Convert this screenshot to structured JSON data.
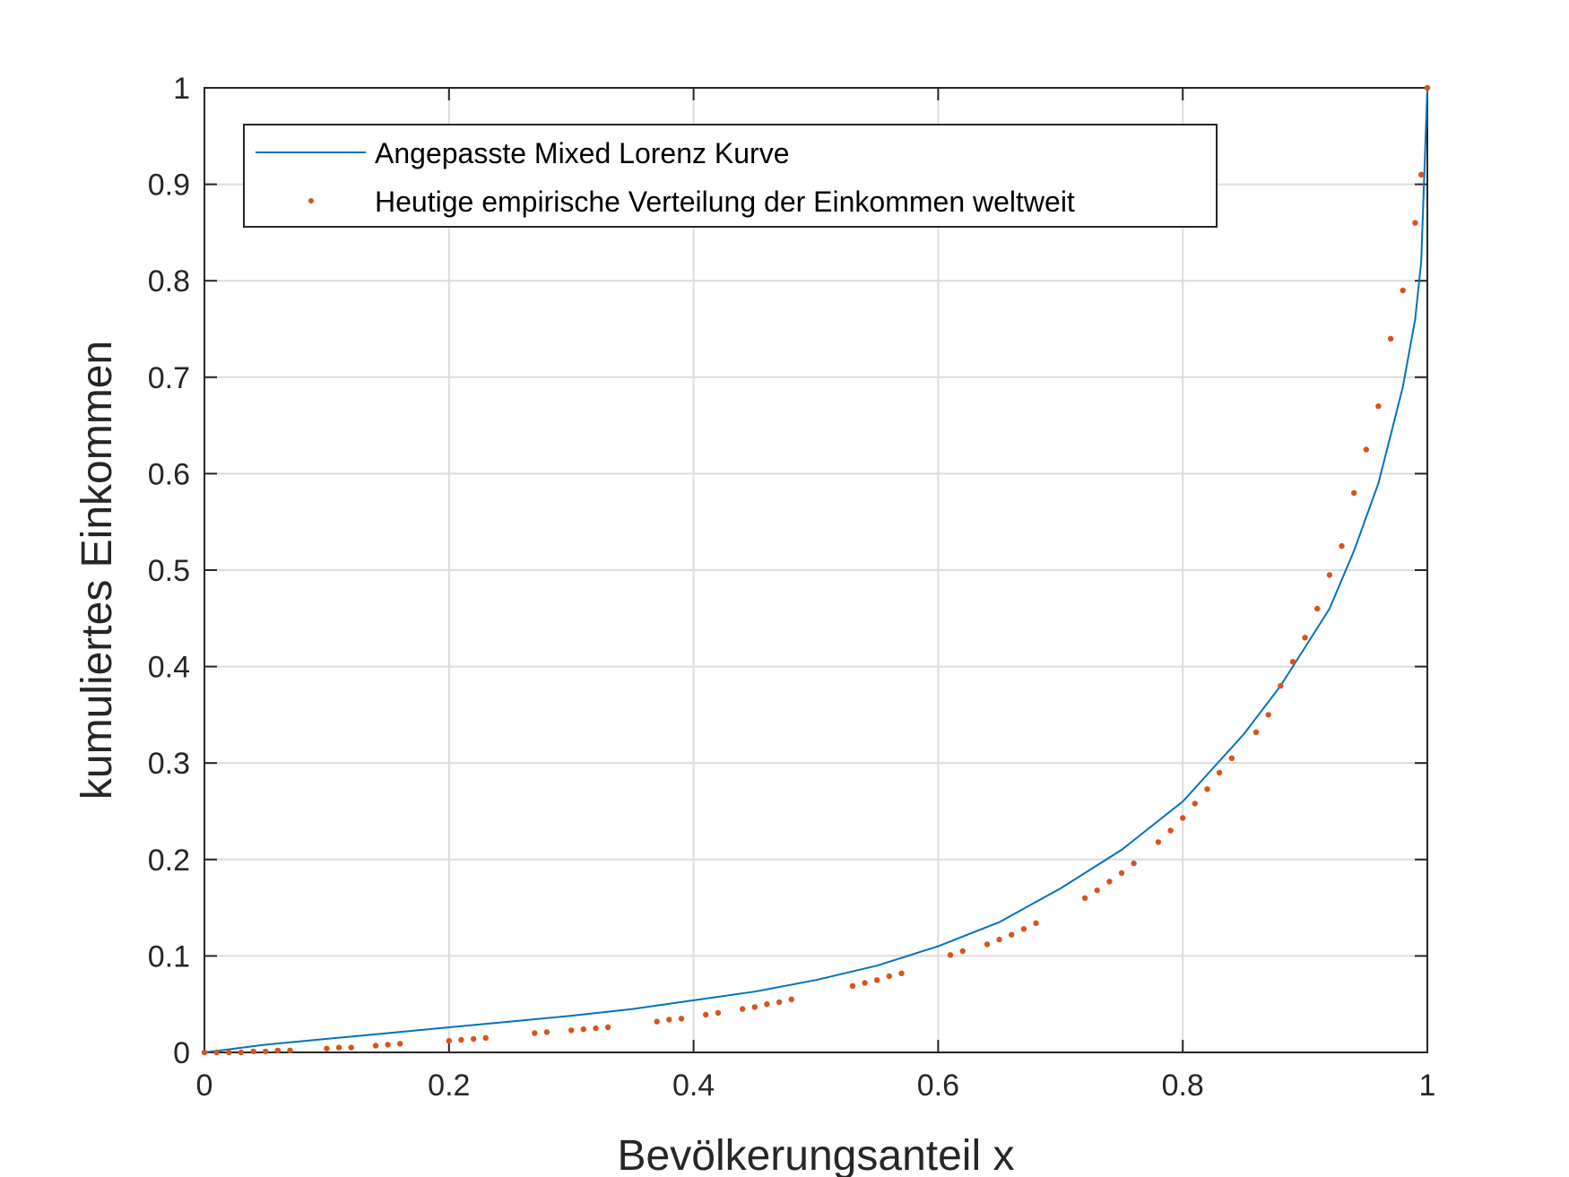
{
  "chart_data": {
    "type": "line",
    "xlabel": "Bevölkerungsanteil x",
    "ylabel": "kumuliertes Einkommen",
    "xlim": [
      0,
      1
    ],
    "ylim": [
      0,
      1
    ],
    "xticks": [
      0,
      0.2,
      0.4,
      0.6,
      0.8,
      1
    ],
    "xtick_labels": [
      "0",
      "0.2",
      "0.4",
      "0.6",
      "0.8",
      "1"
    ],
    "yticks": [
      0,
      0.1,
      0.2,
      0.3,
      0.4,
      0.5,
      0.6,
      0.7,
      0.8,
      0.9,
      1
    ],
    "ytick_labels": [
      "0",
      "0.1",
      "0.2",
      "0.3",
      "0.4",
      "0.5",
      "0.6",
      "0.7",
      "0.8",
      "0.9",
      "1"
    ],
    "grid": true,
    "legend_position": "top-left",
    "series": [
      {
        "name": "Angepasste Mixed Lorenz Kurve",
        "kind": "line",
        "color": "#0072BD",
        "x": [
          0,
          0.05,
          0.1,
          0.15,
          0.2,
          0.25,
          0.3,
          0.35,
          0.4,
          0.45,
          0.5,
          0.55,
          0.6,
          0.65,
          0.7,
          0.75,
          0.8,
          0.85,
          0.88,
          0.9,
          0.92,
          0.94,
          0.96,
          0.97,
          0.98,
          0.99,
          0.995,
          1
        ],
        "y": [
          0,
          0.008,
          0.014,
          0.02,
          0.026,
          0.032,
          0.038,
          0.045,
          0.054,
          0.063,
          0.075,
          0.09,
          0.11,
          0.135,
          0.17,
          0.21,
          0.26,
          0.33,
          0.38,
          0.42,
          0.46,
          0.52,
          0.59,
          0.64,
          0.69,
          0.76,
          0.82,
          1.0
        ]
      },
      {
        "name": "Heutige empirische Verteilung der Einkommen weltweit",
        "kind": "scatter",
        "color": "#D95319",
        "x": [
          0,
          0.01,
          0.02,
          0.03,
          0.04,
          0.05,
          0.06,
          0.07,
          0.1,
          0.11,
          0.12,
          0.14,
          0.15,
          0.16,
          0.2,
          0.21,
          0.22,
          0.23,
          0.27,
          0.28,
          0.3,
          0.31,
          0.32,
          0.33,
          0.37,
          0.38,
          0.39,
          0.41,
          0.42,
          0.44,
          0.45,
          0.46,
          0.47,
          0.48,
          0.53,
          0.54,
          0.55,
          0.56,
          0.57,
          0.61,
          0.62,
          0.64,
          0.65,
          0.66,
          0.67,
          0.68,
          0.72,
          0.73,
          0.74,
          0.75,
          0.76,
          0.78,
          0.79,
          0.8,
          0.81,
          0.82,
          0.83,
          0.84,
          0.86,
          0.87,
          0.88,
          0.89,
          0.9,
          0.91,
          0.92,
          0.93,
          0.94,
          0.95,
          0.96,
          0.97,
          0.98,
          0.99,
          0.995,
          1
        ],
        "y": [
          0,
          0,
          0,
          0,
          0.001,
          0.001,
          0.002,
          0.002,
          0.004,
          0.005,
          0.005,
          0.007,
          0.008,
          0.009,
          0.012,
          0.013,
          0.014,
          0.015,
          0.02,
          0.021,
          0.023,
          0.024,
          0.025,
          0.026,
          0.032,
          0.034,
          0.035,
          0.039,
          0.041,
          0.045,
          0.047,
          0.05,
          0.052,
          0.055,
          0.069,
          0.072,
          0.075,
          0.079,
          0.082,
          0.101,
          0.105,
          0.112,
          0.117,
          0.122,
          0.128,
          0.134,
          0.16,
          0.168,
          0.177,
          0.186,
          0.196,
          0.218,
          0.23,
          0.243,
          0.258,
          0.273,
          0.29,
          0.305,
          0.332,
          0.35,
          0.38,
          0.405,
          0.43,
          0.46,
          0.495,
          0.525,
          0.58,
          0.625,
          0.67,
          0.74,
          0.79,
          0.86,
          0.91,
          1.0
        ]
      }
    ]
  }
}
